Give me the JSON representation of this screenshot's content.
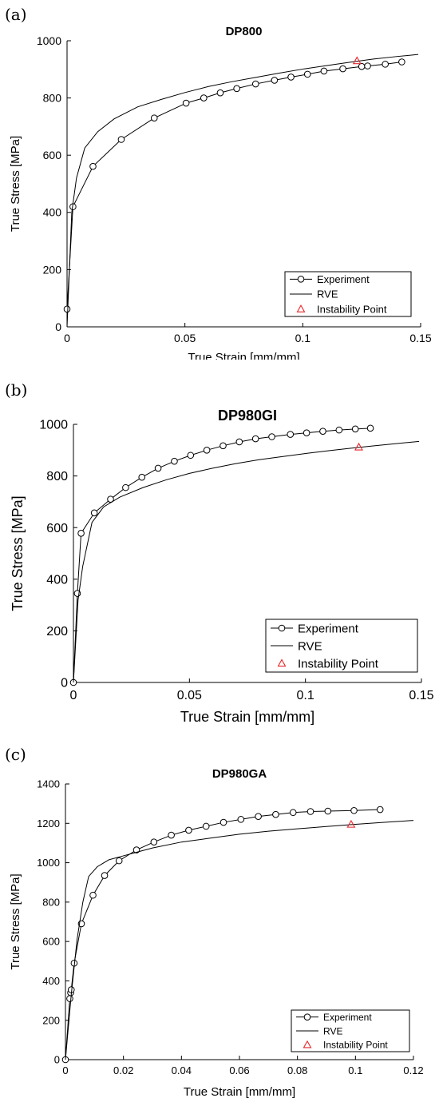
{
  "panels": [
    {
      "label": "(a)",
      "chart_data": {
        "type": "line",
        "title": "DP800",
        "xlabel": "True Strain [mm/mm]",
        "ylabel": "True Stress [MPa]",
        "xlim": [
          0,
          0.15
        ],
        "ylim": [
          0,
          1000
        ],
        "xticks": [
          0,
          0.05,
          0.1,
          0.15
        ],
        "xtick_labels": [
          "0",
          "0.05",
          "0.1",
          "0.15"
        ],
        "yticks": [
          0,
          200,
          400,
          600,
          800,
          1000
        ],
        "ytick_labels": [
          "0",
          "200",
          "400",
          "600",
          "800",
          "1000"
        ],
        "legend_position": "bottom-right",
        "series": [
          {
            "name": "Experiment",
            "style": "line-circle",
            "x": [
              0.0,
              0.0025,
              0.011,
              0.023,
              0.037,
              0.0505,
              0.058,
              0.065,
              0.072,
              0.08,
              0.088,
              0.095,
              0.102,
              0.109,
              0.117,
              0.125,
              0.1275,
              0.135,
              0.142
            ],
            "y": [
              62,
              420,
              561,
              655,
              730,
              782,
              800,
              818,
              833,
              849,
              862,
              873,
              883,
              894,
              902,
              910,
              912,
              918,
              926
            ]
          },
          {
            "name": "RVE",
            "style": "line",
            "x": [
              0.0,
              0.002,
              0.004,
              0.0075,
              0.013,
              0.02,
              0.03,
              0.04,
              0.05,
              0.06,
              0.07,
              0.08,
              0.09,
              0.1,
              0.11,
              0.12,
              0.13,
              0.14,
              0.149
            ],
            "y": [
              0,
              400,
              520,
              625,
              682,
              727,
              769,
              795,
              819,
              840,
              857,
              872,
              887,
              901,
              913,
              925,
              936,
              945,
              952
            ]
          },
          {
            "name": "Instability Point",
            "style": "marker-triangle",
            "color": "#e8262b",
            "x": [
              0.123
            ],
            "y": [
              930
            ]
          }
        ]
      }
    },
    {
      "label": "(b)",
      "chart_data": {
        "type": "line",
        "title": "DP980GI",
        "xlabel": "True Strain [mm/mm]",
        "ylabel": "True Stress [MPa]",
        "xlim": [
          0,
          0.15
        ],
        "ylim": [
          0,
          1000
        ],
        "xticks": [
          0,
          0.05,
          0.1,
          0.15
        ],
        "xtick_labels": [
          "0",
          "0.05",
          "0.1",
          "0.15"
        ],
        "yticks": [
          0,
          200,
          400,
          600,
          800,
          1000
        ],
        "ytick_labels": [
          "0",
          "200",
          "400",
          "600",
          "800",
          "1000"
        ],
        "legend_position": "bottom-right",
        "series": [
          {
            "name": "Experiment",
            "style": "line-circle",
            "x": [
              0.0,
              0.0017,
              0.0033,
              0.009,
              0.016,
              0.0225,
              0.0295,
              0.0365,
              0.0435,
              0.0505,
              0.0575,
              0.0645,
              0.0715,
              0.0785,
              0.0855,
              0.0935,
              0.1005,
              0.1075,
              0.1145,
              0.1215,
              0.128
            ],
            "y": [
              0,
              345,
              578,
              657,
              710,
              755,
              795,
              830,
              857,
              880,
              900,
              917,
              932,
              944,
              952,
              961,
              967,
              973,
              978,
              982,
              985
            ]
          },
          {
            "name": "RVE",
            "style": "line",
            "x": [
              0.0,
              0.002,
              0.004,
              0.008,
              0.013,
              0.02,
              0.03,
              0.04,
              0.05,
              0.06,
              0.07,
              0.08,
              0.09,
              0.1,
              0.11,
              0.12,
              0.13,
              0.14,
              0.149
            ],
            "y": [
              0,
              320,
              450,
              620,
              680,
              718,
              755,
              785,
              810,
              830,
              848,
              863,
              875,
              887,
              898,
              908,
              917,
              926,
              934
            ]
          },
          {
            "name": "Instability Point",
            "style": "marker-triangle",
            "color": "#e8262b",
            "x": [
              0.123
            ],
            "y": [
              912
            ]
          }
        ]
      }
    },
    {
      "label": "(c)",
      "chart_data": {
        "type": "line",
        "title": "DP980GA",
        "xlabel": "True Strain [mm/mm]",
        "ylabel": "True Stress [MPa]",
        "xlim": [
          0,
          0.12
        ],
        "ylim": [
          0,
          1400
        ],
        "xticks": [
          0,
          0.02,
          0.04,
          0.06,
          0.08,
          0.1,
          0.12
        ],
        "xtick_labels": [
          "0",
          "0.02",
          "0.04",
          "0.06",
          "0.08",
          "0.1",
          "0.12"
        ],
        "yticks": [
          0,
          200,
          400,
          600,
          800,
          1000,
          1200,
          1400
        ],
        "ytick_labels": [
          "0",
          "200",
          "400",
          "600",
          "800",
          "1000",
          "1200",
          "1400"
        ],
        "legend_position": "bottom-right",
        "series": [
          {
            "name": "Experiment",
            "style": "line-circle",
            "x": [
              0.0,
              0.0015,
              0.0018,
              0.002,
              0.003,
              0.0055,
              0.0095,
              0.0135,
              0.0185,
              0.0245,
              0.0305,
              0.0365,
              0.0425,
              0.0485,
              0.0545,
              0.0605,
              0.0665,
              0.0725,
              0.0785,
              0.0845,
              0.0905,
              0.0995,
              0.1085
            ],
            "y": [
              0,
              310,
              340,
              355,
              490,
              690,
              835,
              935,
              1010,
              1065,
              1105,
              1140,
              1165,
              1185,
              1205,
              1220,
              1235,
              1245,
              1255,
              1260,
              1262,
              1265,
              1270
            ]
          },
          {
            "name": "RVE",
            "style": "line",
            "x": [
              0.0,
              0.002,
              0.004,
              0.006,
              0.008,
              0.011,
              0.015,
              0.02,
              0.025,
              0.03,
              0.04,
              0.05,
              0.06,
              0.07,
              0.08,
              0.09,
              0.1,
              0.11,
              0.12
            ],
            "y": [
              0,
              330,
              610,
              800,
              930,
              980,
              1015,
              1035,
              1055,
              1075,
              1105,
              1125,
              1145,
              1160,
              1172,
              1184,
              1195,
              1205,
              1215
            ]
          },
          {
            "name": "Instability Point",
            "style": "marker-triangle",
            "color": "#e8262b",
            "x": [
              0.0985
            ],
            "y": [
              1195
            ]
          }
        ]
      }
    }
  ]
}
